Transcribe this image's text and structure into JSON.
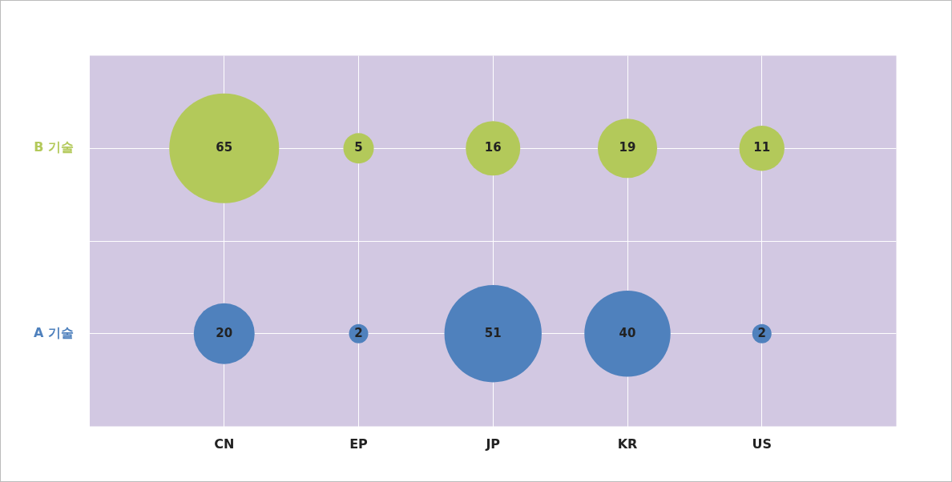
{
  "chart_data": {
    "type": "other",
    "categories": [
      "CN",
      "EP",
      "JP",
      "KR",
      "US"
    ],
    "series": [
      {
        "name": "B 기술",
        "color": "#b3c95a",
        "values": [
          65,
          5,
          16,
          19,
          11
        ]
      },
      {
        "name": "A 기술",
        "color": "#4f81bd",
        "values": [
          20,
          2,
          51,
          40,
          2
        ]
      }
    ],
    "data_labels": true
  }
}
